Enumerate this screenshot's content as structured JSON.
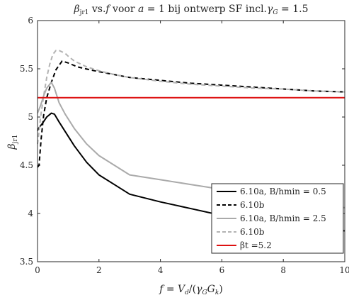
{
  "chart_data": {
    "type": "line",
    "title": "βjr1 vs.f voor a = 1 bij ontwerp SF incl.γG = 1.5",
    "xlabel": "f = Vd/(γG Gk)",
    "ylabel": "βjr1",
    "xlim": [
      0,
      10
    ],
    "ylim": [
      3.5,
      6
    ],
    "xticks": [
      0,
      2,
      4,
      6,
      8,
      10
    ],
    "yticks": [
      3.5,
      4,
      4.5,
      5,
      5.5,
      6
    ],
    "xtick_labels": [
      "0",
      "2",
      "4",
      "6",
      "8",
      "10"
    ],
    "ytick_labels": [
      "3.5",
      "4",
      "4.5",
      "5",
      "5.5",
      "6"
    ],
    "grid": false,
    "legend_position": "bottom-right",
    "series": [
      {
        "name": "6.10a, B/hmin = 0.5",
        "color": "#000000",
        "dash": "solid",
        "x": [
          0,
          0.05,
          0.15,
          0.3,
          0.45,
          0.55,
          0.7,
          0.9,
          1.2,
          1.6,
          2.0,
          2.5,
          3.0,
          4.0,
          5.0,
          6.0,
          7.0,
          8.0,
          9.0,
          10.0
        ],
        "y": [
          4.86,
          4.89,
          4.93,
          5.0,
          5.04,
          5.03,
          4.95,
          4.85,
          4.7,
          4.53,
          4.4,
          4.3,
          4.2,
          4.12,
          4.05,
          3.98,
          3.93,
          3.89,
          3.85,
          3.82
        ]
      },
      {
        "name": "6.10b",
        "color": "#000000",
        "dash": "dashed",
        "x": [
          0,
          0.05,
          0.12,
          0.2,
          0.3,
          0.45,
          0.6,
          0.8,
          1.0,
          1.3,
          1.7,
          2.0,
          2.5,
          3.0,
          4.0,
          5.0,
          6.0,
          7.0,
          8.0,
          9.0,
          10.0
        ],
        "y": [
          4.48,
          4.5,
          4.78,
          5.02,
          5.2,
          5.36,
          5.49,
          5.58,
          5.56,
          5.52,
          5.49,
          5.47,
          5.44,
          5.41,
          5.38,
          5.35,
          5.33,
          5.31,
          5.29,
          5.27,
          5.26
        ]
      },
      {
        "name": "6.10a, B/hmin = 2.5",
        "color": "#aaaaaa",
        "dash": "solid",
        "x": [
          0,
          0.1,
          0.2,
          0.3,
          0.45,
          0.55,
          0.7,
          0.9,
          1.2,
          1.6,
          2.0,
          2.5,
          3.0,
          4.0,
          5.0,
          6.0,
          7.0,
          8.0,
          9.0,
          10.0
        ],
        "y": [
          5.04,
          5.12,
          5.22,
          5.3,
          5.36,
          5.3,
          5.15,
          5.03,
          4.88,
          4.72,
          4.6,
          4.5,
          4.4,
          4.35,
          4.3,
          4.25,
          4.2,
          4.15,
          4.1,
          4.06
        ]
      },
      {
        "name": "6.10b",
        "color": "#b3b3b3",
        "dash": "dashed",
        "x": [
          0,
          0.05,
          0.1,
          0.2,
          0.3,
          0.4,
          0.5,
          0.6,
          0.7,
          0.9,
          1.0,
          1.2,
          1.6,
          2.0,
          2.5,
          3.0,
          4.0,
          5.0,
          6.0,
          7.0,
          8.0,
          9.0,
          10.0
        ],
        "y": [
          4.72,
          4.85,
          5.0,
          5.22,
          5.41,
          5.55,
          5.65,
          5.69,
          5.69,
          5.66,
          5.63,
          5.58,
          5.52,
          5.48,
          5.44,
          5.41,
          5.37,
          5.34,
          5.32,
          5.3,
          5.29,
          5.27,
          5.26
        ]
      },
      {
        "name": "βt =5.2",
        "color": "#dd1111",
        "dash": "solid",
        "x": [
          0,
          10
        ],
        "y": [
          5.2,
          5.2
        ]
      }
    ]
  }
}
